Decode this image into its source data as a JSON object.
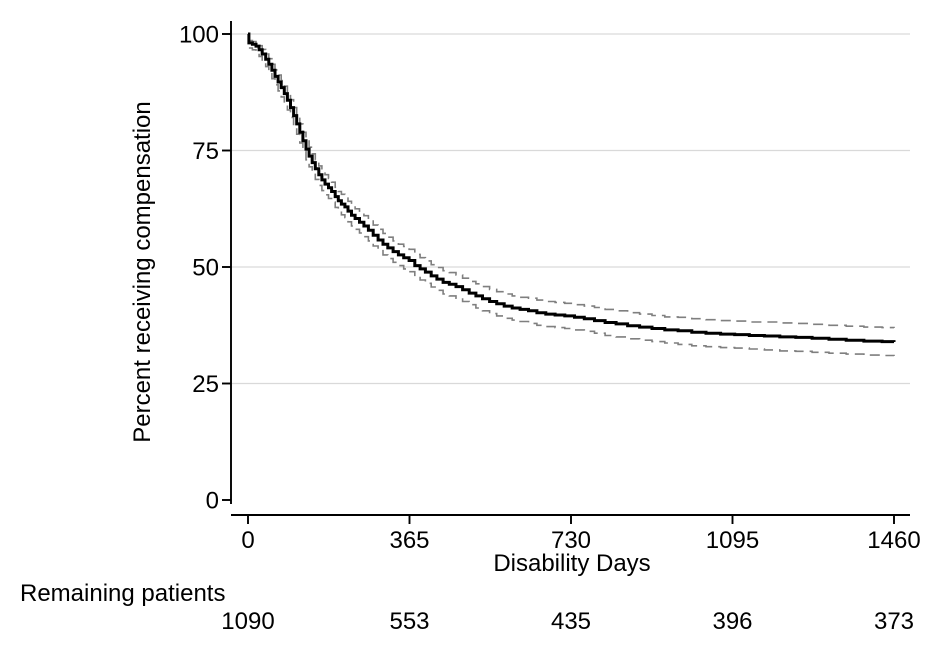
{
  "figure": {
    "ylabel": "Percent receiving compensation",
    "xlabel": "Disability Days",
    "risk_label": "Remaining patients"
  },
  "chart_data": {
    "type": "line",
    "subtype": "kaplan-meier-step",
    "title": "",
    "xlabel": "Disability Days",
    "ylabel": "Percent receiving compensation",
    "xlim": [
      0,
      1460
    ],
    "ylim": [
      0,
      100
    ],
    "x_ticks": [
      0,
      365,
      730,
      1095,
      1460
    ],
    "y_ticks": [
      0,
      25,
      50,
      75,
      100
    ],
    "grid_y": [
      25,
      50,
      75,
      100
    ],
    "grid_on": true,
    "legend": "none",
    "colors": {
      "estimate": "#000000",
      "ci": "#7f7f7f",
      "grid": "#d9d9d9",
      "axis": "#000000",
      "background": "#ffffff"
    },
    "series": [
      {
        "name": "KM estimate",
        "style": "solid",
        "width": 3,
        "color": "#000000",
        "x": [
          0,
          2,
          10,
          18,
          25,
          32,
          40,
          47,
          54,
          61,
          68,
          75,
          82,
          89,
          96,
          103,
          110,
          117,
          124,
          131,
          138,
          145,
          152,
          160,
          167,
          174,
          182,
          189,
          197,
          204,
          211,
          219,
          226,
          234,
          242,
          252,
          262,
          272,
          283,
          294,
          305,
          316,
          328,
          340,
          352,
          364,
          377,
          389,
          401,
          414,
          427,
          441,
          455,
          470,
          485,
          500,
          515,
          530,
          546,
          562,
          579,
          597,
          615,
          634,
          653,
          673,
          694,
          716,
          738,
          760,
          783,
          807,
          832,
          858,
          885,
          913,
          942,
          972,
          1003,
          1035,
          1068,
          1100,
          1133,
          1167,
          1202,
          1238,
          1275,
          1313,
          1352,
          1392,
          1433,
          1460
        ],
        "y": [
          100,
          98.1,
          97.8,
          97.4,
          96.6,
          95.7,
          94.6,
          93.5,
          92.2,
          90.9,
          89.7,
          88.5,
          87.2,
          85.8,
          84.2,
          82.5,
          80.7,
          78.9,
          77.1,
          75.3,
          73.8,
          72.4,
          71.1,
          69.8,
          68.7,
          67.8,
          67,
          66.2,
          65.1,
          64.2,
          63.5,
          62.9,
          62,
          61.1,
          60.4,
          59.6,
          58.8,
          57.9,
          56.8,
          55.8,
          54.9,
          54.1,
          53.3,
          52.6,
          52,
          51.4,
          50.3,
          49.6,
          48.9,
          48.1,
          47.4,
          46.7,
          46.3,
          45.8,
          45.1,
          44.4,
          43.8,
          43.2,
          42.6,
          42.1,
          41.6,
          41.2,
          40.9,
          40.6,
          40.2,
          39.9,
          39.7,
          39.5,
          39.2,
          38.9,
          38.5,
          38.1,
          37.8,
          37.4,
          37.1,
          36.8,
          36.5,
          36.3,
          36,
          35.8,
          35.6,
          35.5,
          35.3,
          35.2,
          35,
          34.9,
          34.7,
          34.5,
          34.3,
          34.1,
          34,
          33.9
        ]
      },
      {
        "name": "95% CI upper",
        "style": "dashed",
        "width": 1.6,
        "color": "#7f7f7f",
        "x": [
          2,
          10,
          18,
          25,
          32,
          40,
          47,
          54,
          61,
          68,
          75,
          82,
          89,
          96,
          103,
          110,
          117,
          124,
          131,
          138,
          145,
          152,
          160,
          167,
          174,
          182,
          189,
          197,
          204,
          211,
          219,
          226,
          234,
          242,
          252,
          262,
          272,
          283,
          294,
          305,
          316,
          328,
          340,
          352,
          364,
          377,
          389,
          401,
          414,
          427,
          441,
          455,
          470,
          485,
          500,
          515,
          530,
          546,
          562,
          579,
          597,
          615,
          634,
          653,
          673,
          694,
          716,
          738,
          760,
          783,
          807,
          832,
          858,
          885,
          913,
          942,
          972,
          1003,
          1035,
          1068,
          1100,
          1133,
          1167,
          1202,
          1238,
          1275,
          1313,
          1352,
          1392,
          1433,
          1460
        ],
        "y": [
          98.6,
          98.4,
          98.1,
          97.5,
          96.7,
          95.7,
          94.7,
          93.5,
          92.3,
          91.2,
          90,
          88.8,
          87.4,
          85.9,
          84.2,
          82.5,
          80.7,
          78.9,
          77.2,
          75.7,
          74.3,
          73,
          71.7,
          70.6,
          69.8,
          69,
          68.2,
          67.1,
          66.2,
          65.6,
          65,
          64.1,
          63.2,
          62.5,
          61.8,
          61,
          60.1,
          59,
          58.1,
          57.2,
          56.4,
          55.6,
          54.9,
          54.4,
          53.8,
          52.7,
          52,
          51.3,
          50.5,
          49.9,
          49.2,
          48.8,
          48.3,
          47.6,
          46.9,
          46.4,
          45.8,
          45.2,
          44.7,
          44.2,
          43.8,
          43.5,
          43.3,
          42.9,
          42.6,
          42.4,
          42.2,
          41.9,
          41.6,
          41.3,
          40.9,
          40.6,
          40.2,
          39.9,
          39.6,
          39.3,
          39.2,
          38.9,
          38.7,
          38.5,
          38.4,
          38.2,
          38.2,
          38,
          37.9,
          37.7,
          37.5,
          37.3,
          37.1,
          37,
          36.9
        ]
      },
      {
        "name": "95% CI lower",
        "style": "dashed",
        "width": 1.6,
        "color": "#7f7f7f",
        "x": [
          2,
          10,
          18,
          25,
          32,
          40,
          47,
          54,
          61,
          68,
          75,
          82,
          89,
          96,
          103,
          110,
          117,
          124,
          131,
          138,
          145,
          152,
          160,
          167,
          174,
          182,
          189,
          197,
          204,
          211,
          219,
          226,
          234,
          242,
          252,
          262,
          272,
          283,
          294,
          305,
          316,
          328,
          340,
          352,
          364,
          377,
          389,
          401,
          414,
          427,
          441,
          455,
          470,
          485,
          500,
          515,
          530,
          546,
          562,
          579,
          597,
          615,
          634,
          653,
          673,
          694,
          716,
          738,
          760,
          783,
          807,
          832,
          858,
          885,
          913,
          942,
          972,
          1003,
          1035,
          1068,
          1100,
          1133,
          1167,
          1202,
          1238,
          1275,
          1313,
          1352,
          1392,
          1433,
          1460
        ],
        "y": [
          97,
          96.6,
          96.1,
          95.2,
          94.2,
          93,
          91.8,
          90.4,
          89.1,
          87.8,
          86.5,
          85.2,
          83.7,
          82.1,
          80.3,
          78.5,
          76.6,
          74.8,
          73,
          71.5,
          70.1,
          68.8,
          67.5,
          66.4,
          65.5,
          64.7,
          63.9,
          62.8,
          61.9,
          61.2,
          60.6,
          59.7,
          58.8,
          58.1,
          57.3,
          56.5,
          55.6,
          54.5,
          53.5,
          52.6,
          51.8,
          51,
          50.3,
          49.6,
          49,
          47.9,
          47.2,
          46.5,
          45.7,
          45,
          44.2,
          43.8,
          43.3,
          42.6,
          41.9,
          41.2,
          40.6,
          40,
          39.5,
          39,
          38.6,
          38.3,
          37.9,
          37.5,
          37.2,
          37,
          36.8,
          36.5,
          36.2,
          35.8,
          35.3,
          35,
          34.6,
          34.3,
          34,
          33.7,
          33.4,
          33.1,
          32.9,
          32.7,
          32.6,
          32.4,
          32.2,
          32,
          31.9,
          31.7,
          31.5,
          31.3,
          31.1,
          31,
          30.9
        ]
      }
    ],
    "risk_table": {
      "label": "Remaining patients",
      "x": [
        0,
        365,
        730,
        1095,
        1460
      ],
      "values": [
        "1090",
        "553",
        "435",
        "396",
        "373"
      ]
    }
  }
}
